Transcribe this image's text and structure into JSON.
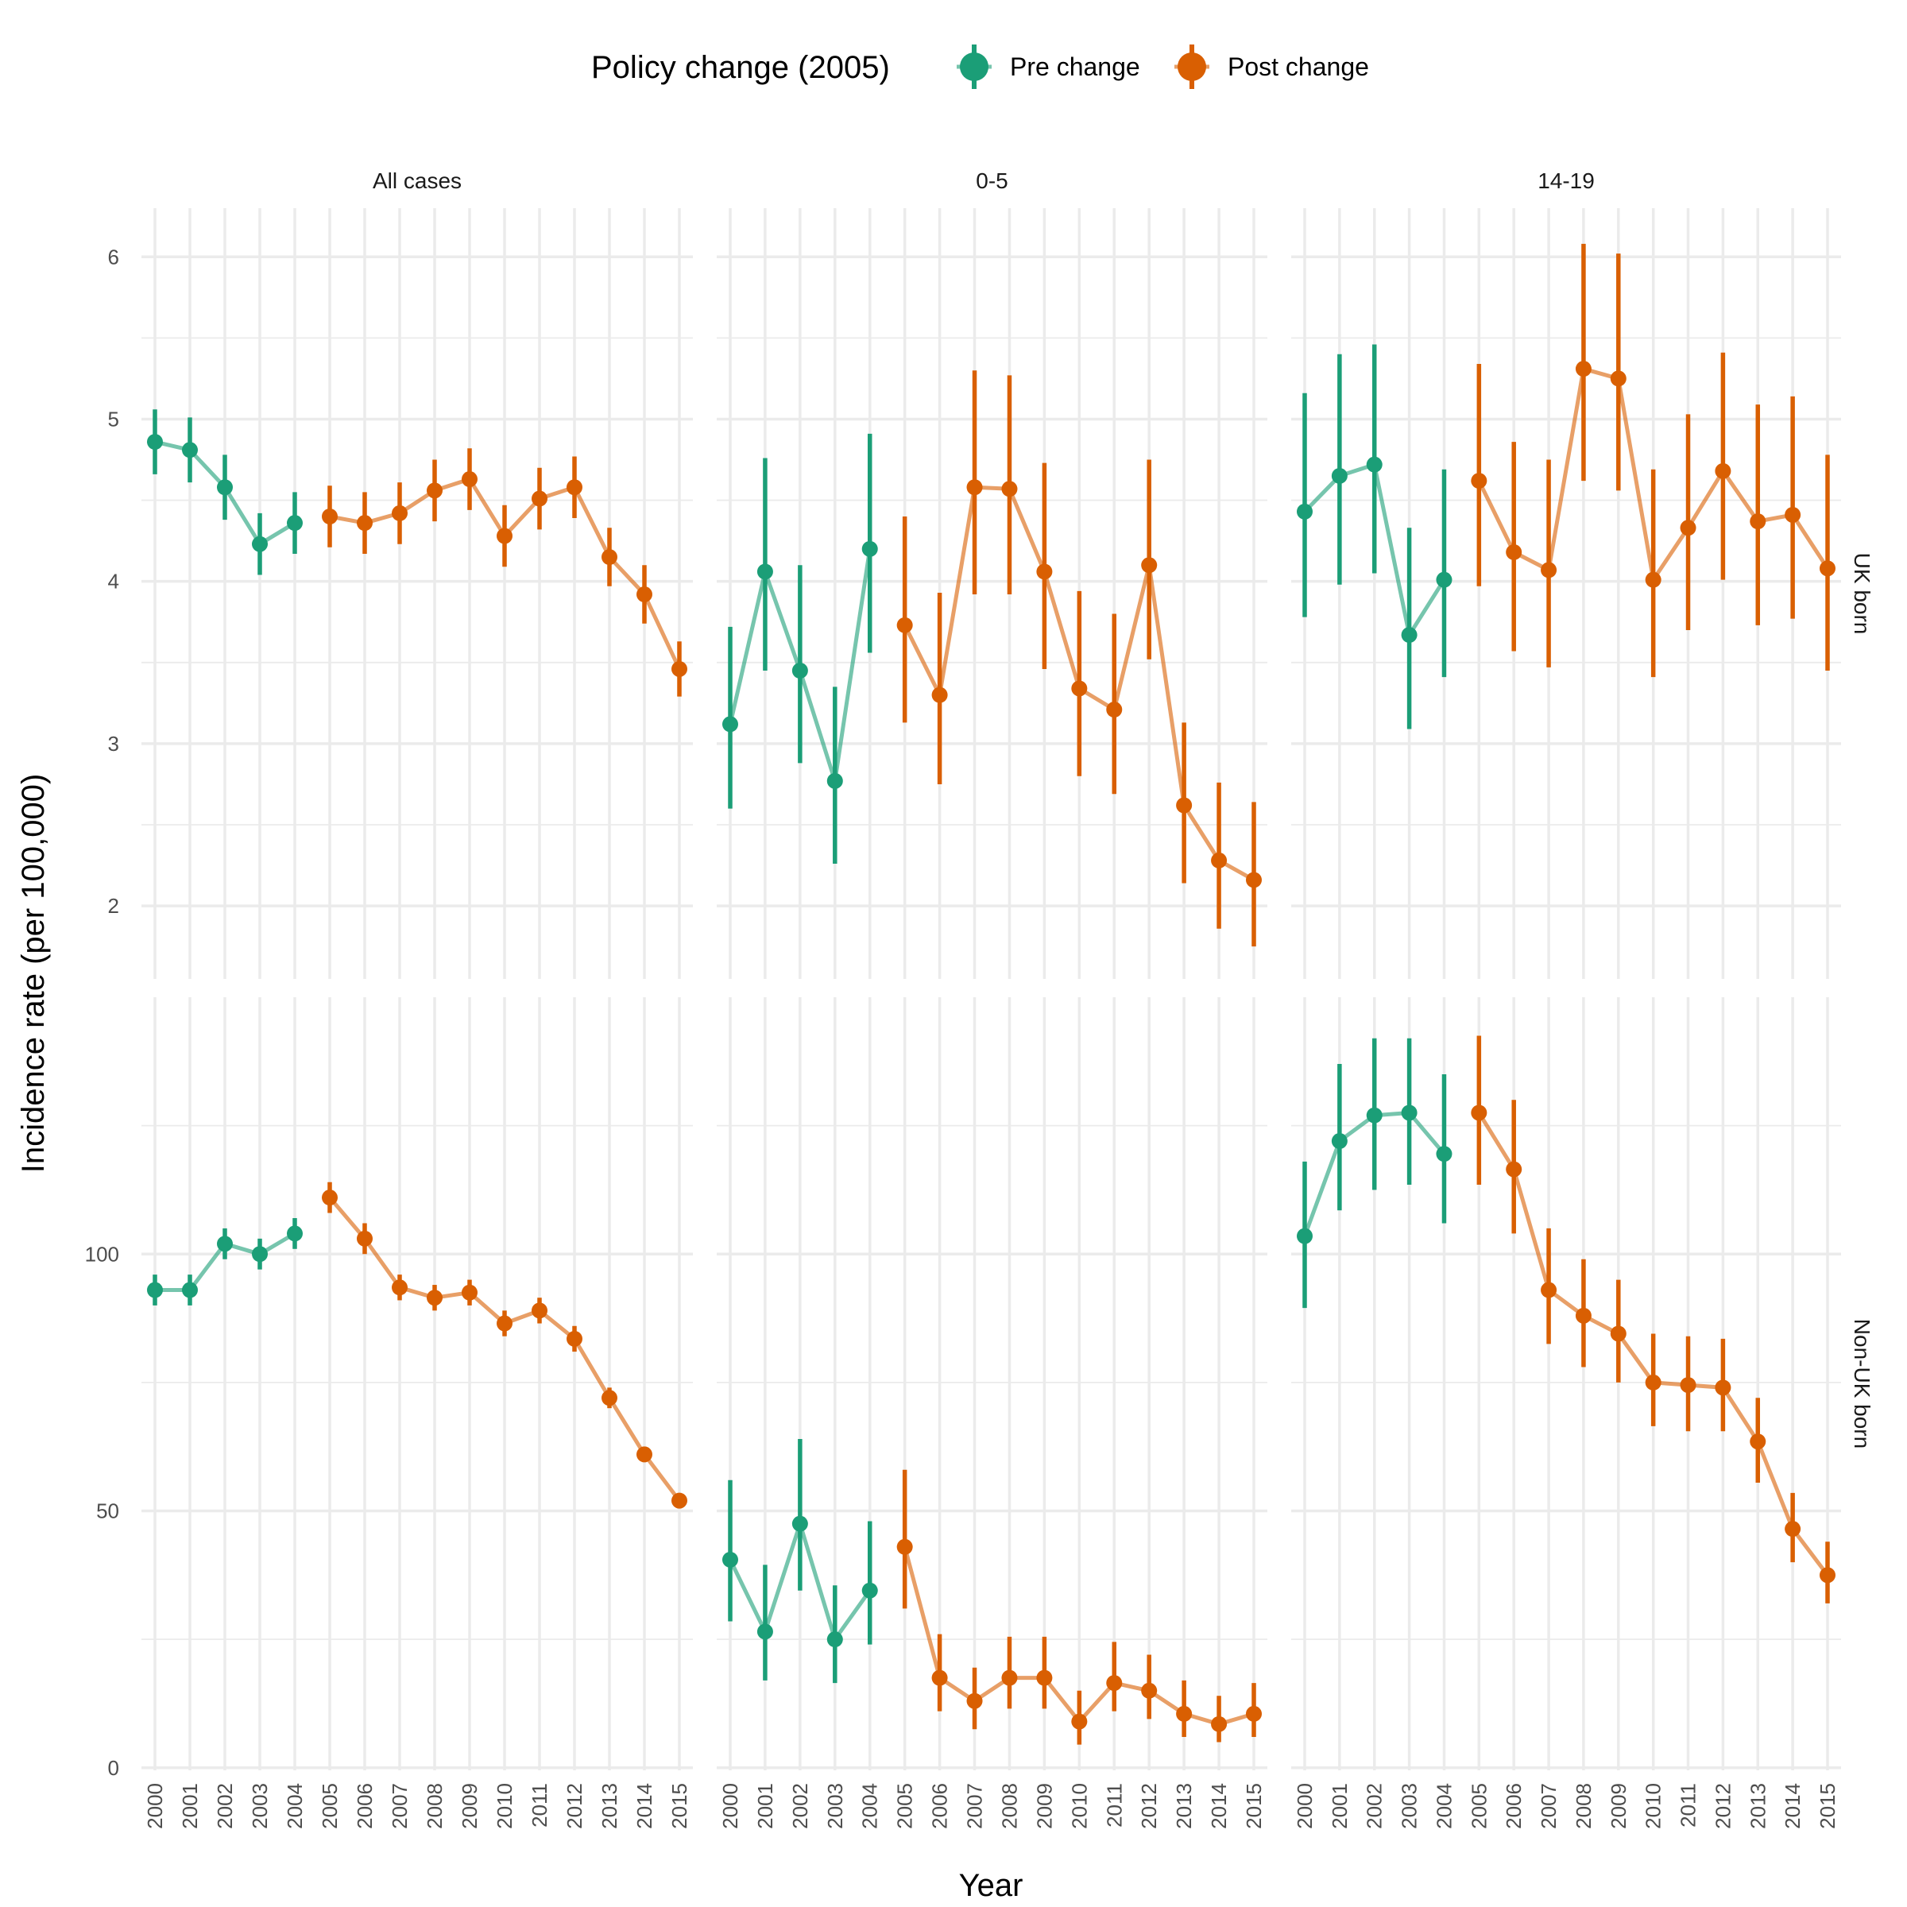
{
  "chart_data": {
    "type": "line",
    "xlabel": "Year",
    "ylabel": "Incidence rate (per 100,000)",
    "legend": {
      "title": "Policy change (2005)",
      "position": "top",
      "entries": [
        {
          "label": "Pre change",
          "color": "#1B9E77"
        },
        {
          "label": "Post change",
          "color": "#D95F02"
        }
      ]
    },
    "colors": {
      "pre": "#1B9E77",
      "post": "#D95F02"
    },
    "grid": true,
    "columns": [
      "All cases",
      "0-5",
      "14-19"
    ],
    "rows": [
      "UK born",
      "Non-UK born"
    ],
    "x": [
      2000,
      2001,
      2002,
      2003,
      2004,
      2005,
      2006,
      2007,
      2008,
      2009,
      2010,
      2011,
      2012,
      2013,
      2014,
      2015
    ],
    "x_tick_labels": [
      "2000",
      "2001",
      "2002",
      "2003",
      "2004",
      "2005",
      "2006",
      "2007",
      "2008",
      "2009",
      "2010",
      "2011",
      "2012",
      "2013",
      "2014",
      "2015"
    ],
    "change_year": 2005,
    "row_axes": [
      {
        "ylim": [
          1.55,
          6.3
        ],
        "major_ticks": [
          2,
          3,
          4,
          5,
          6
        ],
        "tick_labels": [
          "2",
          "3",
          "4",
          "5",
          "6"
        ],
        "minor_ticks": [
          2.5,
          3.5,
          4.5,
          5.5
        ]
      },
      {
        "ylim": [
          -0.5,
          150
        ],
        "major_ticks": [
          0,
          50,
          100
        ],
        "tick_labels": [
          "0",
          "50",
          "100"
        ],
        "minor_ticks": [
          25,
          75,
          125
        ]
      }
    ],
    "panels": [
      {
        "row": "UK born",
        "column": "All cases",
        "values": [
          4.86,
          4.81,
          4.58,
          4.23,
          4.36,
          4.4,
          4.36,
          4.42,
          4.56,
          4.63,
          4.28,
          4.51,
          4.58,
          4.15,
          3.92,
          3.46
        ],
        "lower": [
          4.66,
          4.61,
          4.38,
          4.04,
          4.17,
          4.21,
          4.17,
          4.23,
          4.37,
          4.44,
          4.09,
          4.32,
          4.39,
          3.97,
          3.74,
          3.29
        ],
        "upper": [
          5.06,
          5.01,
          4.78,
          4.42,
          4.55,
          4.59,
          4.55,
          4.61,
          4.75,
          4.82,
          4.47,
          4.7,
          4.77,
          4.33,
          4.1,
          3.63
        ]
      },
      {
        "row": "UK born",
        "column": "0-5",
        "values": [
          3.12,
          4.06,
          3.45,
          2.77,
          4.2,
          3.73,
          3.3,
          4.58,
          4.57,
          4.06,
          3.34,
          3.21,
          4.1,
          2.62,
          2.28,
          2.16
        ],
        "lower": [
          2.6,
          3.45,
          2.88,
          2.26,
          3.56,
          3.13,
          2.75,
          3.92,
          3.92,
          3.46,
          2.8,
          2.69,
          3.52,
          2.14,
          1.86,
          1.75
        ],
        "upper": [
          3.72,
          4.76,
          4.1,
          3.35,
          4.91,
          4.4,
          3.93,
          5.3,
          5.27,
          4.73,
          3.94,
          3.8,
          4.75,
          3.13,
          2.76,
          2.64
        ]
      },
      {
        "row": "UK born",
        "column": "14-19",
        "values": [
          4.43,
          4.65,
          4.72,
          3.67,
          4.01,
          4.62,
          4.18,
          4.07,
          5.31,
          5.25,
          4.01,
          4.33,
          4.68,
          4.37,
          4.41,
          4.08
        ],
        "lower": [
          3.78,
          3.98,
          4.05,
          3.09,
          3.41,
          3.97,
          3.57,
          3.47,
          4.62,
          4.56,
          3.41,
          3.7,
          4.01,
          3.73,
          3.77,
          3.45
        ],
        "upper": [
          5.16,
          5.4,
          5.46,
          4.33,
          4.69,
          5.34,
          4.86,
          4.75,
          6.08,
          6.02,
          4.69,
          5.03,
          5.41,
          5.09,
          5.14,
          4.78
        ]
      },
      {
        "row": "Non-UK born",
        "column": "All cases",
        "values": [
          93,
          93,
          102,
          100,
          104,
          111,
          103,
          93.5,
          91.5,
          92.5,
          86.5,
          89,
          83.5,
          72,
          61,
          52
        ],
        "lower": [
          90,
          90,
          99,
          97,
          101,
          108,
          100,
          91,
          89,
          90,
          84,
          86.5,
          81,
          70,
          59.5,
          50.5
        ],
        "upper": [
          96,
          96,
          105,
          103,
          107,
          114,
          106,
          96,
          94,
          95,
          89,
          91.5,
          86,
          74,
          62.5,
          53.5
        ]
      },
      {
        "row": "Non-UK born",
        "column": "0-5",
        "values": [
          40.5,
          26.5,
          47.5,
          25,
          34.5,
          43,
          17.5,
          13,
          17.5,
          17.5,
          9,
          16.5,
          15,
          10.5,
          8.5,
          10.5
        ],
        "lower": [
          28.5,
          17,
          34.5,
          16.5,
          24,
          31,
          11,
          7.5,
          11.5,
          11.5,
          4.5,
          11,
          9.5,
          6,
          5,
          6
        ],
        "upper": [
          56,
          39.5,
          64,
          35.5,
          48,
          58,
          26,
          19.5,
          25.5,
          25.5,
          15,
          24.5,
          22,
          17,
          14,
          16.5
        ]
      },
      {
        "row": "Non-UK born",
        "column": "14-19",
        "values": [
          103.5,
          122,
          127,
          127.5,
          119.5,
          127.5,
          116.5,
          93,
          88,
          84.5,
          75,
          74.5,
          74,
          63.5,
          46.5,
          37.5
        ],
        "lower": [
          89.5,
          108.5,
          112.5,
          113.5,
          106,
          113.5,
          104,
          82.5,
          78,
          75,
          66.5,
          65.5,
          65.5,
          55.5,
          40,
          32
        ],
        "upper": [
          118,
          137,
          142,
          142,
          135,
          142.5,
          130,
          105,
          99,
          95,
          84.5,
          84,
          83.5,
          72,
          53.5,
          44
        ]
      }
    ]
  }
}
